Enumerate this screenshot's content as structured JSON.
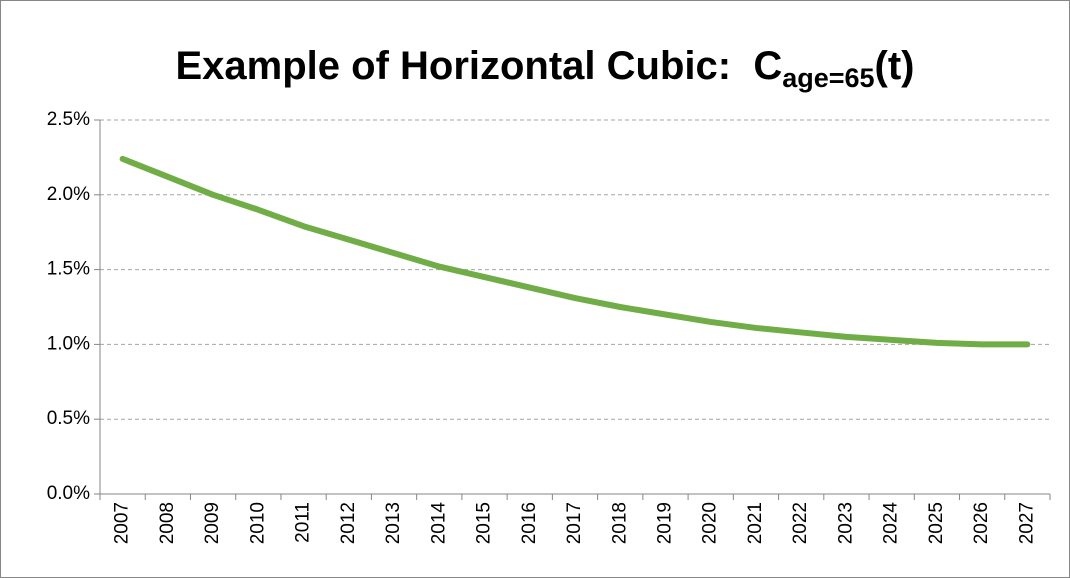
{
  "chart_data": {
    "type": "line",
    "title": [
      "Example of Horizontal Cubic:  C",
      "age=65",
      "(t)"
    ],
    "categories": [
      "2007",
      "2008",
      "2009",
      "2010",
      "2011",
      "2012",
      "2013",
      "2014",
      "2015",
      "2016",
      "2017",
      "2018",
      "2019",
      "2020",
      "2021",
      "2022",
      "2023",
      "2024",
      "2025",
      "2026",
      "2027"
    ],
    "values": [
      2.24,
      2.12,
      2.0,
      1.9,
      1.79,
      1.7,
      1.61,
      1.52,
      1.45,
      1.38,
      1.31,
      1.25,
      1.2,
      1.15,
      1.11,
      1.08,
      1.05,
      1.03,
      1.01,
      1.0,
      1.0
    ],
    "color": "#70ad47",
    "ylim": [
      0,
      2.5
    ],
    "yticks": [
      {
        "value": 0,
        "label": "0.0%"
      },
      {
        "value": 0.5,
        "label": "0.5%"
      },
      {
        "value": 1,
        "label": "1.0%"
      },
      {
        "value": 1.5,
        "label": "1.5%"
      },
      {
        "value": 2,
        "label": "2.0%"
      },
      {
        "value": 2.5,
        "label": "2.5%"
      }
    ],
    "grid": true
  }
}
